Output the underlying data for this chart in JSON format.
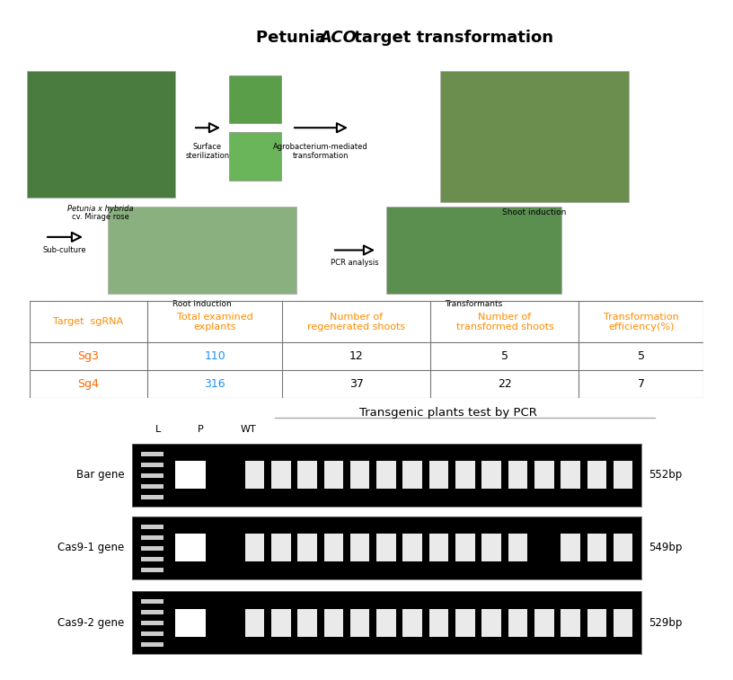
{
  "title_parts": [
    "Petunia ",
    "ACO",
    " target transformation"
  ],
  "table_headers": [
    "Target  sgRNA",
    "Total examined\nexplants",
    "Number of\nregenerated shoots",
    "Number of\ntransformed shoots",
    "Transformation\nefficiency(%)"
  ],
  "table_rows": [
    [
      "Sg3",
      "110",
      "12",
      "5",
      "5"
    ],
    [
      "Sg4",
      "316",
      "37",
      "22",
      "7"
    ]
  ],
  "table_header_color": "#FF8C00",
  "table_data_color_col0": "#FF6600",
  "table_data_color_col1": "#1E90FF",
  "table_border_color": "#777777",
  "pcr_title": "Transgenic plants test by PCR",
  "pcr_rows": [
    {
      "gene": "Bar gene",
      "bp": "552bp",
      "sample_bands": [
        1,
        1,
        1,
        1,
        1,
        1,
        1,
        1,
        1,
        1,
        1,
        1,
        1,
        1,
        1
      ]
    },
    {
      "gene": "Cas9-1 gene",
      "bp": "549bp",
      "sample_bands": [
        1,
        1,
        1,
        1,
        1,
        1,
        1,
        1,
        1,
        1,
        1,
        0,
        1,
        1,
        1
      ]
    },
    {
      "gene": "Cas9-2 gene",
      "bp": "529bp",
      "sample_bands": [
        1,
        1,
        1,
        1,
        1,
        1,
        1,
        1,
        1,
        1,
        1,
        1,
        1,
        1,
        1
      ]
    }
  ],
  "bg_color": "#ffffff"
}
